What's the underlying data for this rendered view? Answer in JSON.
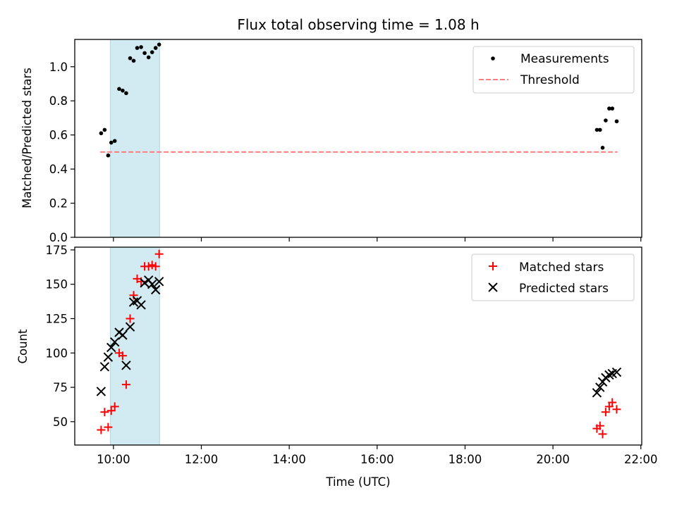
{
  "title": "Flux total observing time = 1.08 h",
  "chart_data": [
    {
      "type": "scatter",
      "panel": "top",
      "ylabel": "Matched/Predicted stars",
      "xlabel": "",
      "x_unit": "hours (UTC)",
      "xlim": [
        9.12,
        22.02
      ],
      "ylim": [
        0,
        1.16
      ],
      "yticks": [
        0.0,
        0.2,
        0.4,
        0.6,
        0.8,
        1.0
      ],
      "ytick_labels": [
        "0.0",
        "0.2",
        "0.4",
        "0.6",
        "0.8",
        "1.0"
      ],
      "shaded_span": [
        9.93,
        11.05
      ],
      "legend_position": "upper right",
      "series": [
        {
          "name": "Measurements",
          "style": "dot",
          "color": "#000000",
          "x": [
            9.72,
            9.8,
            9.88,
            9.95,
            10.03,
            10.13,
            10.21,
            10.29,
            10.38,
            10.46,
            10.54,
            10.63,
            10.71,
            10.8,
            10.88,
            10.96,
            11.04,
            21.0,
            21.07,
            21.13,
            21.2,
            21.28,
            21.35,
            21.45
          ],
          "y": [
            0.61,
            0.63,
            0.48,
            0.555,
            0.565,
            0.87,
            0.86,
            0.845,
            1.05,
            1.035,
            1.11,
            1.115,
            1.08,
            1.055,
            1.085,
            1.11,
            1.13,
            0.63,
            0.63,
            0.525,
            0.685,
            0.755,
            0.755,
            0.68
          ]
        },
        {
          "name": "Threshold",
          "style": "dashed-line",
          "color": "#ff7f7f",
          "x": [
            9.7,
            21.47
          ],
          "y": [
            0.5,
            0.5
          ]
        }
      ]
    },
    {
      "type": "scatter",
      "panel": "bottom",
      "ylabel": "Count",
      "xlabel": "Time (UTC)",
      "x_unit": "hours (UTC)",
      "xlim": [
        9.12,
        22.02
      ],
      "ylim": [
        33,
        177
      ],
      "yticks": [
        50,
        75,
        100,
        125,
        150,
        175
      ],
      "ytick_labels": [
        "50",
        "75",
        "100",
        "125",
        "150",
        "175"
      ],
      "xticks": [
        10,
        12,
        14,
        16,
        18,
        20,
        22
      ],
      "xtick_labels": [
        "10:00",
        "12:00",
        "14:00",
        "16:00",
        "18:00",
        "20:00",
        "22:00"
      ],
      "shaded_span": [
        9.93,
        11.05
      ],
      "legend_position": "upper right",
      "series": [
        {
          "name": "Matched stars",
          "style": "plus",
          "color": "#ff0000",
          "x": [
            9.72,
            9.8,
            9.88,
            9.95,
            10.03,
            10.13,
            10.21,
            10.29,
            10.38,
            10.46,
            10.54,
            10.63,
            10.71,
            10.8,
            10.88,
            10.96,
            11.04,
            21.0,
            21.07,
            21.13,
            21.2,
            21.28,
            21.35,
            21.45
          ],
          "y": [
            44,
            57,
            46,
            58,
            61,
            100,
            98,
            77,
            125,
            142,
            154,
            152,
            163,
            163,
            164,
            163,
            172,
            45,
            47,
            41,
            57,
            61,
            64,
            59
          ]
        },
        {
          "name": "Predicted stars",
          "style": "x",
          "color": "#000000",
          "x": [
            9.72,
            9.8,
            9.88,
            9.95,
            10.03,
            10.13,
            10.21,
            10.29,
            10.38,
            10.46,
            10.54,
            10.63,
            10.71,
            10.8,
            10.88,
            10.96,
            11.04,
            21.0,
            21.07,
            21.13,
            21.2,
            21.28,
            21.35,
            21.45
          ],
          "y": [
            72,
            90,
            97,
            104,
            108,
            115,
            113,
            91,
            119,
            137,
            138,
            135,
            151,
            153,
            150,
            146,
            152,
            71,
            75,
            79,
            82,
            84,
            85,
            86
          ]
        }
      ]
    }
  ],
  "colors": {
    "shade": "#add8e6",
    "threshold": "#ff7f7f",
    "matched": "#ff0000",
    "measurements": "#000000",
    "predicted": "#000000"
  }
}
